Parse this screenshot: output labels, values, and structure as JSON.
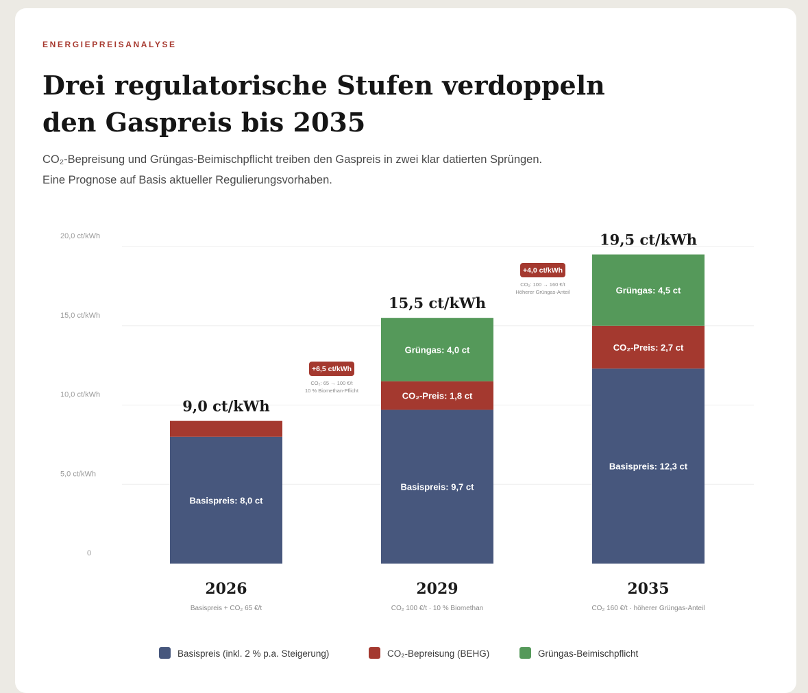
{
  "header": {
    "eyebrow": "ENERGIEPREISANALYSE",
    "title": "Drei regulatorische Stufen verdoppeln den Gaspreis bis 2035",
    "subtitle": "CO₂-Bepreisung und Grüngas-Beimischpflicht treiben den Gaspreis in zwei klar datierten Sprüngen. Eine Prognose auf Basis aktueller Regulierungsvorhaben."
  },
  "colors": {
    "basis": "#47577d",
    "co2": "#a4392f",
    "gruengas": "#55995a"
  },
  "chart_data": {
    "type": "bar",
    "stacked": true,
    "unit": "ct/kWh",
    "ylim": [
      0,
      20
    ],
    "yticks": [
      {
        "value": 0,
        "label": "0"
      },
      {
        "value": 5,
        "label": "5,0 ct/kWh"
      },
      {
        "value": 10,
        "label": "10,0 ct/kWh"
      },
      {
        "value": 15,
        "label": "15,0 ct/kWh"
      },
      {
        "value": 20,
        "label": "20,0 ct/kWh"
      }
    ],
    "grid": true,
    "categories": [
      "2026",
      "2029",
      "2035"
    ],
    "category_notes": [
      "Basispreis + CO₂ 65 €/t",
      "CO₂ 100 €/t · 10 % Biomethan",
      "CO₂ 160 €/t · höherer Grüngas-Anteil"
    ],
    "totals": [
      "9,0 ct/kWh",
      "15,5 ct/kWh",
      "19,5 ct/kWh"
    ],
    "series": [
      {
        "name": "Basispreis (inkl. 2 % p.a. Steigerung)",
        "key": "basis",
        "values": [
          8.0,
          9.7,
          12.3
        ],
        "labels": [
          "Basispreis: 8,0 ct",
          "Basispreis: 9,7 ct",
          "Basispreis: 12,3 ct"
        ]
      },
      {
        "name": "CO₂-Bepreisung (BEHG)",
        "key": "co2",
        "values": [
          1.0,
          1.8,
          2.7
        ],
        "labels": [
          "",
          "CO₂-Preis: 1,8 ct",
          "CO₂-Preis: 2,7 ct"
        ]
      },
      {
        "name": "Grüngas-Beimischpflicht",
        "key": "gruengas",
        "values": [
          0,
          4.0,
          4.5
        ],
        "labels": [
          "",
          "Grüngas: 4,0 ct",
          "Grüngas: 4,5 ct"
        ]
      }
    ],
    "annotations": [
      {
        "between": [
          0,
          1
        ],
        "label": "+6,5 ct/kWh",
        "notes": [
          "CO₂: 65 → 100 €/t",
          "10 % Biomethan-Pflicht"
        ]
      },
      {
        "between": [
          1,
          2
        ],
        "label": "+4,0 ct/kWh",
        "notes": [
          "CO₂: 100 → 160 €/t",
          "Höherer Grüngas-Anteil"
        ]
      }
    ],
    "legend_position": "bottom"
  }
}
